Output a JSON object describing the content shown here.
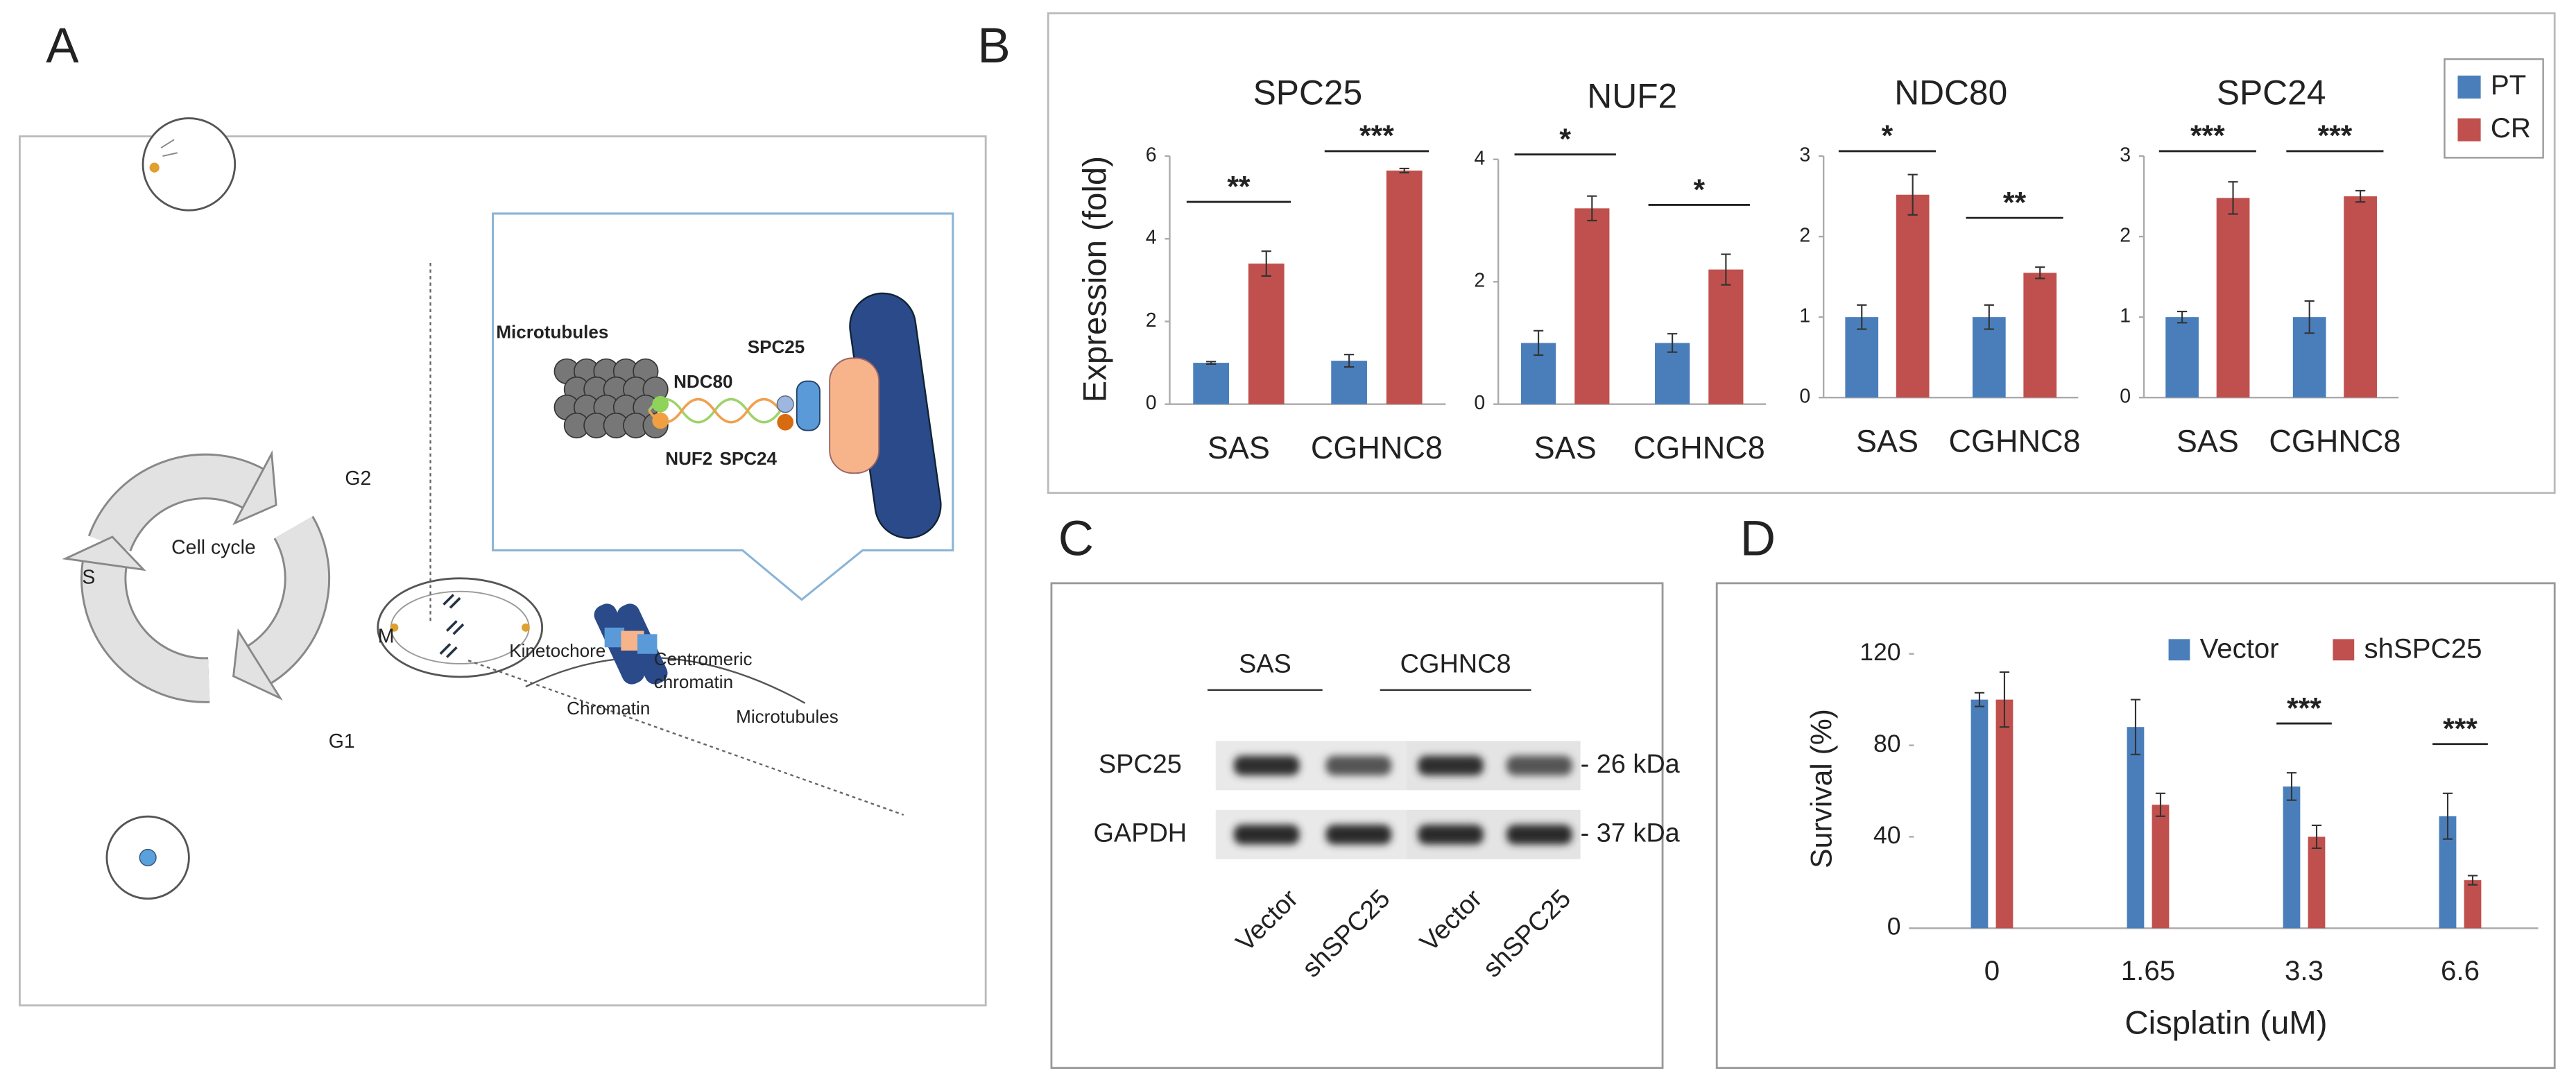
{
  "panel_labels": [
    "A",
    "B",
    "C",
    "D"
  ],
  "diagram": {
    "labels": [
      "G2",
      "S",
      "G1",
      "M",
      "Cell cycle",
      "Microtubules",
      "NDC80",
      "SPC25",
      "NUF2",
      "SPC24",
      "Kinetochore",
      "Centromeric",
      "chromatin",
      "Chromatin",
      "Microtubules"
    ]
  },
  "blot": {
    "groups": [
      "SAS",
      "CGHNC8"
    ],
    "rows": [
      {
        "name": "SPC25",
        "size": "- 26 kDa"
      },
      {
        "name": "GAPDH",
        "size": "- 37 kDa"
      }
    ],
    "lanes": [
      "Vector",
      "shSPC25",
      "Vector",
      "shSPC25"
    ]
  },
  "chart_data": [
    {
      "type": "bar",
      "ylabel": "Expression (fold)",
      "legend": [
        {
          "name": "PT",
          "color": "#4a7ebb"
        },
        {
          "name": "CR",
          "color": "#c0504d"
        }
      ],
      "legend_position": "upper right",
      "panels": [
        {
          "title": "SPC25",
          "categories": [
            "SAS",
            "CGHNC8"
          ],
          "ylim": [
            0,
            6
          ],
          "yticks": [
            0,
            2,
            4,
            6
          ],
          "series": [
            {
              "values": [
                1.0,
                1.05
              ],
              "errors": [
                0.03,
                0.15
              ]
            },
            {
              "values": [
                3.4,
                5.65
              ],
              "errors": [
                0.3,
                0.05
              ]
            }
          ],
          "annotations": [
            "**",
            "***"
          ]
        },
        {
          "title": "NUF2",
          "categories": [
            "SAS",
            "CGHNC8"
          ],
          "ylim": [
            0,
            4
          ],
          "yticks": [
            0,
            2,
            4
          ],
          "series": [
            {
              "values": [
                1.0,
                1.0
              ],
              "errors": [
                0.2,
                0.15
              ]
            },
            {
              "values": [
                3.2,
                2.2
              ],
              "errors": [
                0.2,
                0.25
              ]
            }
          ],
          "annotations": [
            "*",
            "*"
          ]
        },
        {
          "title": "NDC80",
          "categories": [
            "SAS",
            "CGHNC8"
          ],
          "ylim": [
            0,
            3
          ],
          "yticks": [
            0,
            1,
            2,
            3
          ],
          "series": [
            {
              "values": [
                1.0,
                1.0
              ],
              "errors": [
                0.15,
                0.15
              ]
            },
            {
              "values": [
                2.52,
                1.55
              ],
              "errors": [
                0.25,
                0.07
              ]
            }
          ],
          "annotations": [
            "*",
            "**"
          ]
        },
        {
          "title": "SPC24",
          "categories": [
            "SAS",
            "CGHNC8"
          ],
          "ylim": [
            0,
            3
          ],
          "yticks": [
            0,
            1,
            2,
            3
          ],
          "series": [
            {
              "values": [
                1.0,
                1.0
              ],
              "errors": [
                0.07,
                0.2
              ]
            },
            {
              "values": [
                2.48,
                2.5
              ],
              "errors": [
                0.2,
                0.07
              ]
            }
          ],
          "annotations": [
            "***",
            "***"
          ]
        }
      ]
    },
    {
      "type": "bar",
      "xlabel": "Cisplatin (uM)",
      "ylabel": "Survival (%)",
      "categories": [
        "0",
        "1.65",
        "3.3",
        "6.6"
      ],
      "series": [
        {
          "name": "Vector",
          "color": "#4a7ebb",
          "values": [
            100,
            88,
            62,
            49
          ],
          "errors": [
            3,
            12,
            6,
            10
          ]
        },
        {
          "name": "shSPC25",
          "color": "#c0504d",
          "values": [
            100,
            54,
            40,
            21
          ],
          "errors": [
            12,
            5,
            5,
            2
          ]
        }
      ],
      "ylim": [
        0,
        120
      ],
      "yticks": [
        0,
        40,
        80,
        120
      ],
      "annotations": [
        null,
        null,
        "***",
        "***"
      ],
      "legend_position": "upper right"
    }
  ]
}
